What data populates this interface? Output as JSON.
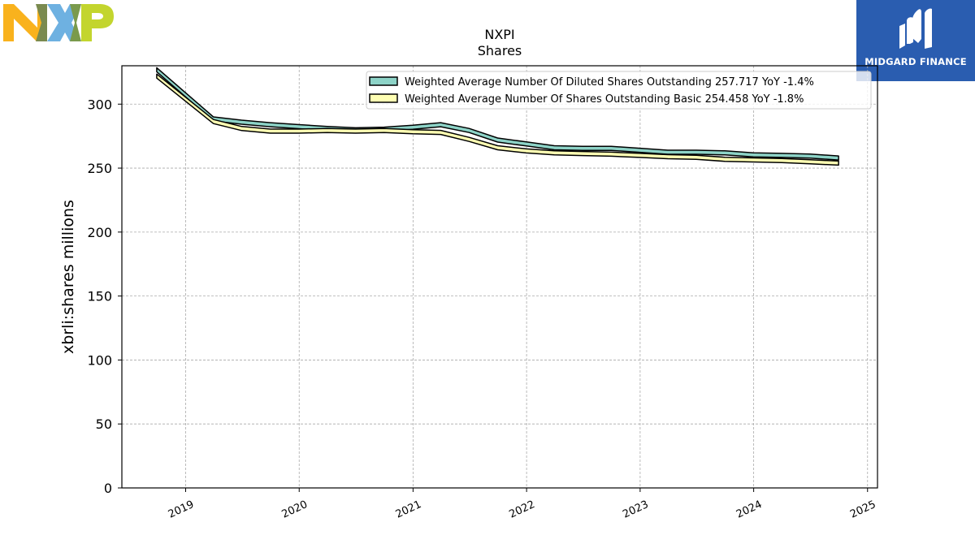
{
  "brand": {
    "company_logo": "nxp-logo",
    "badge_name": "MIDGARD FINANCE",
    "badge_icon": "midgard-m-icon",
    "badge_color": "#2a5db0"
  },
  "chart_data": {
    "type": "area",
    "title": "NXPI",
    "subtitle": "Shares",
    "xlabel": "",
    "ylabel": "xbrli:shares millions",
    "ylim": [
      0,
      330
    ],
    "xlim": [
      "2018-06-10",
      "2025-02-02"
    ],
    "yticks": [
      0,
      50,
      100,
      150,
      200,
      250,
      300
    ],
    "xticks": [
      "2019",
      "2020",
      "2021",
      "2022",
      "2023",
      "2024",
      "2025"
    ],
    "grid": true,
    "legend_position": "top-right",
    "x": [
      "2018-09-30",
      "2019-03-31",
      "2019-06-30",
      "2019-09-30",
      "2019-12-31",
      "2020-03-31",
      "2020-06-30",
      "2020-09-30",
      "2020-12-31",
      "2021-03-31",
      "2021-06-30",
      "2021-09-30",
      "2021-12-31",
      "2022-03-31",
      "2022-06-30",
      "2022-09-30",
      "2022-12-31",
      "2023-03-31",
      "2023-06-30",
      "2023-09-30",
      "2023-12-31",
      "2024-03-31",
      "2024-06-30",
      "2024-09-30"
    ],
    "series": [
      {
        "name": "Weighted Average Number Of Diluted Shares Outstanding",
        "legend_label": "Weighted Average Number Of Diluted Shares Outstanding  257.717 YoY -1.4%",
        "color": "#8dd3c7",
        "values": [
          328.5,
          290.0,
          287.5,
          285.5,
          284.0,
          282.5,
          281.5,
          282.0,
          283.5,
          285.5,
          281.0,
          273.5,
          270.5,
          267.5,
          267.0,
          267.0,
          265.5,
          264.0,
          264.0,
          263.5,
          262.0,
          261.5,
          261.0,
          259.5
        ]
      },
      {
        "name": "Weighted Average Number Of Shares Outstanding Basic",
        "legend_label": "Weighted Average Number Of Shares Outstanding Basic  254.458 YoY -1.8%",
        "color": "#ffffb3",
        "values": [
          323.5,
          288.0,
          282.5,
          280.5,
          280.5,
          281.0,
          280.5,
          281.0,
          280.0,
          279.5,
          274.0,
          267.5,
          265.0,
          263.5,
          263.0,
          262.5,
          261.5,
          260.5,
          260.0,
          258.5,
          258.0,
          257.5,
          256.5,
          255.5
        ]
      }
    ]
  }
}
